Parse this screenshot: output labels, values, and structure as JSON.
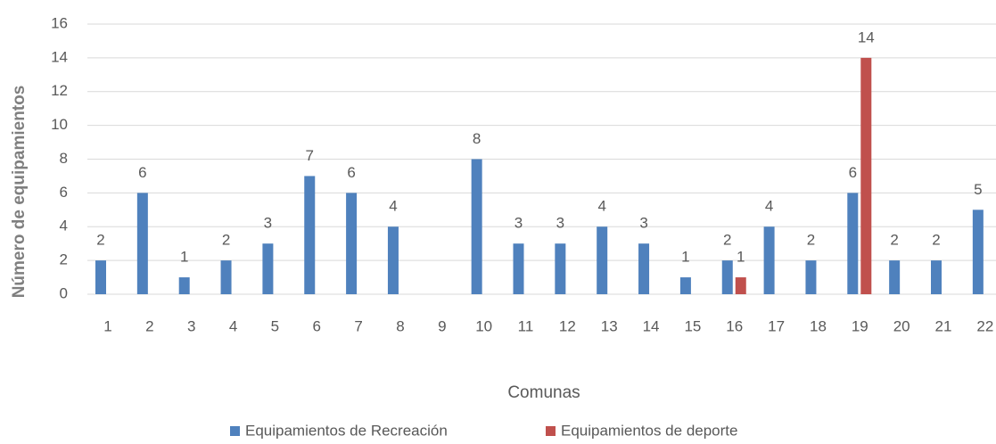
{
  "chart_data": {
    "type": "bar",
    "y_label": "Número de equipamientos",
    "x_label": "Comunas",
    "categories": [
      "1",
      "2",
      "3",
      "4",
      "5",
      "6",
      "7",
      "8",
      "9",
      "10",
      "11",
      "12",
      "13",
      "14",
      "15",
      "16",
      "17",
      "18",
      "19",
      "20",
      "21",
      "22"
    ],
    "series": [
      {
        "name": "Equipamientos de Recreación",
        "color": "#4f81bd",
        "values": [
          2,
          6,
          1,
          2,
          3,
          7,
          6,
          4,
          null,
          8,
          3,
          3,
          4,
          3,
          1,
          2,
          4,
          2,
          6,
          2,
          2,
          5
        ]
      },
      {
        "name": "Equipamientos de deporte",
        "color": "#c0504d",
        "values": [
          null,
          null,
          null,
          null,
          null,
          null,
          null,
          null,
          null,
          null,
          null,
          null,
          null,
          null,
          null,
          1,
          null,
          null,
          14,
          null,
          null,
          null
        ]
      }
    ],
    "ylim": [
      0,
      16
    ],
    "yticks": [
      0,
      2,
      4,
      6,
      8,
      10,
      12,
      14,
      16
    ],
    "grid": true,
    "legend": "bottom"
  }
}
